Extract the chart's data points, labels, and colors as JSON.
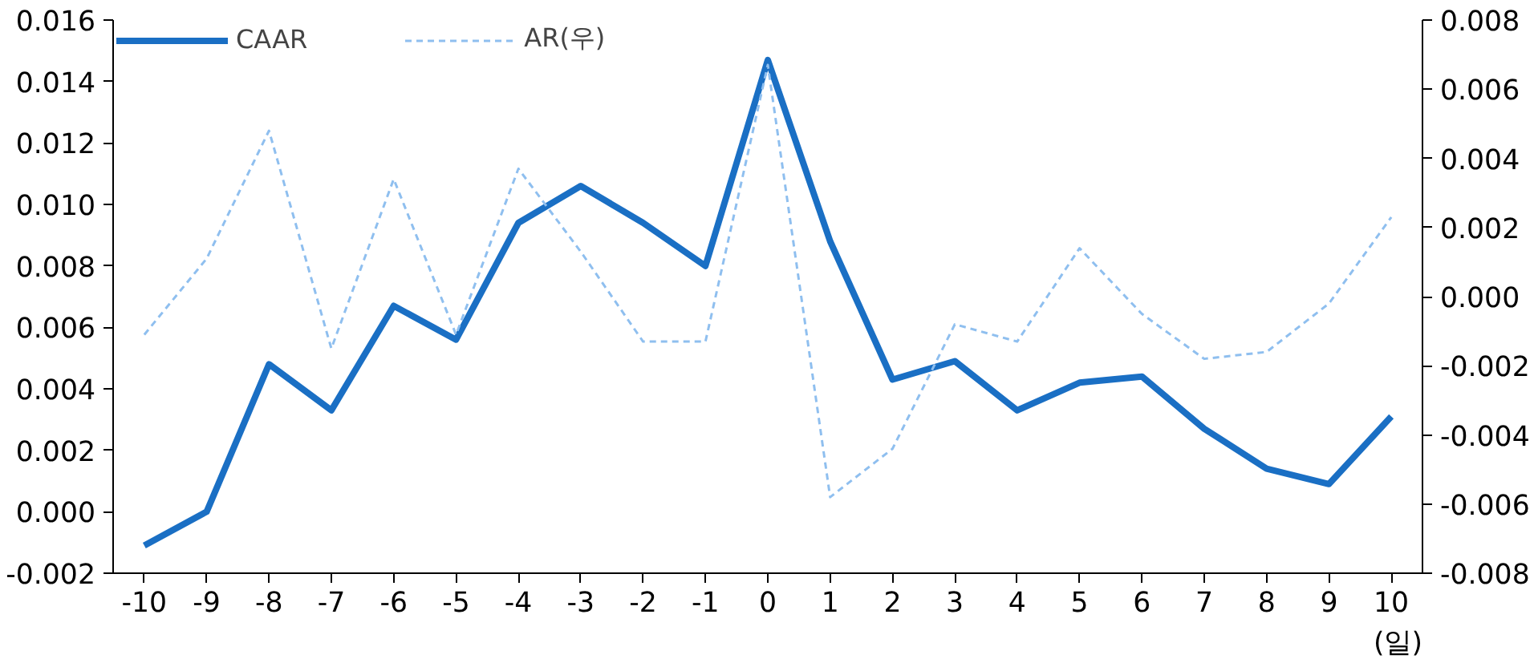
{
  "chart_data": {
    "type": "line",
    "categories": [
      "-10",
      "-9",
      "-8",
      "-7",
      "-6",
      "-5",
      "-4",
      "-3",
      "-2",
      "-1",
      "0",
      "1",
      "2",
      "3",
      "4",
      "5",
      "6",
      "7",
      "8",
      "9",
      "10"
    ],
    "xlabel": "(일)",
    "series": [
      {
        "name": "CAAR",
        "color": "#1a6fc4",
        "line_style": "solid",
        "values": [
          -0.0011,
          0.0,
          0.0048,
          0.0033,
          0.0067,
          0.0056,
          0.0094,
          0.0106,
          0.0094,
          0.008,
          0.0147,
          0.0088,
          0.0043,
          0.0049,
          0.0033,
          0.0042,
          0.0044,
          0.0027,
          0.0014,
          0.0009,
          0.0031
        ]
      },
      {
        "name": "AR(우)",
        "color": "#8fbfef",
        "line_style": "dashed",
        "axis": "y2",
        "values": [
          -0.0011,
          0.0011,
          0.0048,
          -0.0015,
          0.0034,
          -0.0011,
          0.0037,
          0.0013,
          -0.0013,
          -0.0013,
          0.0067,
          -0.0058,
          -0.0044,
          -0.0008,
          -0.0013,
          0.0014,
          -0.0005,
          -0.0018,
          -0.0016,
          -0.0002,
          0.0023
        ]
      }
    ],
    "ylim": [
      -0.002,
      0.016
    ],
    "yticks": [
      {
        "value": -0.002,
        "label": "-0.002"
      },
      {
        "value": 0,
        "label": "0.000"
      },
      {
        "value": 0.002,
        "label": "0.002"
      },
      {
        "value": 0.004,
        "label": "0.004"
      },
      {
        "value": 0.006,
        "label": "0.006"
      },
      {
        "value": 0.008,
        "label": "0.008"
      },
      {
        "value": 0.01,
        "label": "0.010"
      },
      {
        "value": 0.012,
        "label": "0.012"
      },
      {
        "value": 0.014,
        "label": "0.014"
      },
      {
        "value": 0.016,
        "label": "0.016"
      }
    ],
    "y2lim": [
      -0.008,
      0.008
    ],
    "y2ticks": [
      {
        "value": -0.008,
        "label": "-0.008"
      },
      {
        "value": -0.006,
        "label": "-0.006"
      },
      {
        "value": -0.004,
        "label": "-0.004"
      },
      {
        "value": -0.002,
        "label": "-0.002"
      },
      {
        "value": 0,
        "label": "0.000"
      },
      {
        "value": 0.002,
        "label": "0.002"
      },
      {
        "value": 0.004,
        "label": "0.004"
      },
      {
        "value": 0.006,
        "label": "0.006"
      },
      {
        "value": 0.008,
        "label": "0.008"
      }
    ],
    "grid": false,
    "legend": "top",
    "marker": "none"
  }
}
